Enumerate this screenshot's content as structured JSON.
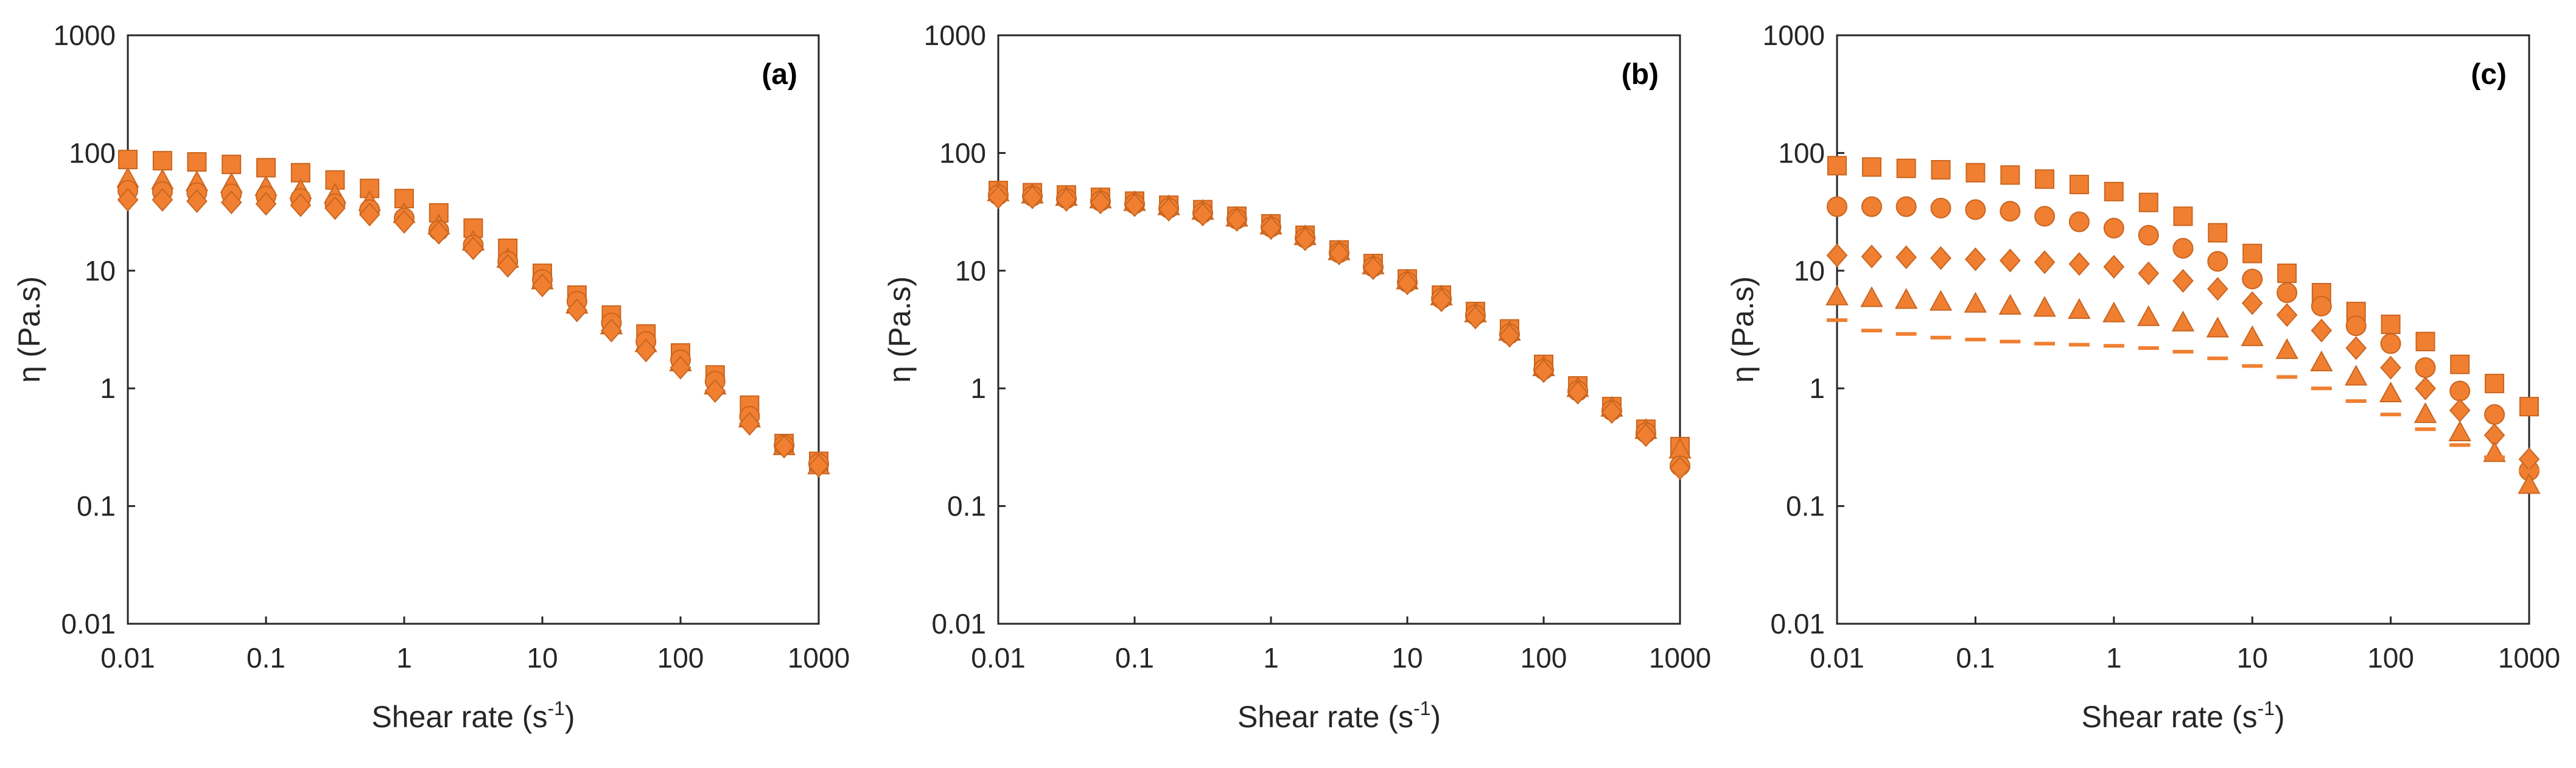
{
  "figure": {
    "colors": {
      "marker": "#F07F31",
      "marker_edge": "#C9651F",
      "axis": "#262626",
      "background": "#FFFFFF"
    }
  },
  "chart_data": [
    {
      "panel": "(a)",
      "type": "scatter",
      "x_scale": "log",
      "y_scale": "log",
      "xlim": [
        0.01,
        1000
      ],
      "ylim": [
        0.01,
        1000
      ],
      "x_ticks": [
        "0.01",
        "0.1",
        "1",
        "10",
        "100",
        "1000"
      ],
      "y_ticks": [
        "0.01",
        "0.1",
        "1",
        "10",
        "100",
        "1000"
      ],
      "xlabel": "Shear rate (s",
      "xlabel_sup": "-1",
      "xlabel_end": ")",
      "ylabel": "η (Pa.s)",
      "x": [
        0.01,
        0.0178,
        0.0316,
        0.0562,
        0.1,
        0.178,
        0.316,
        0.562,
        1,
        1.78,
        3.16,
        5.62,
        10,
        17.8,
        31.6,
        56.2,
        100,
        178,
        316,
        562,
        1000
      ],
      "series": [
        {
          "name": "square",
          "marker": "square",
          "values": [
            88,
            86,
            84,
            80,
            75,
            68,
            59,
            50,
            41,
            31,
            23,
            15.5,
            9.5,
            6.2,
            4.2,
            2.9,
            2.0,
            1.3,
            0.72,
            0.34,
            0.24
          ]
        },
        {
          "name": "triangle",
          "marker": "triangle",
          "values": [
            60,
            58,
            56,
            54,
            51,
            48,
            44,
            38,
            30,
            24,
            17.5,
            12.5,
            8.2,
            5.1,
            3.4,
            2.4,
            1.65,
            1.05,
            0.55,
            0.32,
            0.22
          ]
        },
        {
          "name": "circle",
          "marker": "circle",
          "values": [
            48,
            47,
            46,
            45,
            43,
            41,
            37,
            33,
            28,
            22,
            16.5,
            12,
            8.4,
            5.5,
            3.6,
            2.5,
            1.75,
            1.15,
            0.58,
            0.33,
            0.23
          ]
        },
        {
          "name": "diamond",
          "marker": "diamond",
          "values": [
            40,
            40,
            39,
            38,
            37,
            36,
            34,
            30,
            26,
            21,
            15.5,
            11,
            7.5,
            4.6,
            3.1,
            2.1,
            1.5,
            0.95,
            0.5,
            0.32,
            0.22
          ]
        }
      ]
    },
    {
      "panel": "(b)",
      "type": "scatter",
      "x_scale": "log",
      "y_scale": "log",
      "xlim": [
        0.01,
        1000
      ],
      "ylim": [
        0.01,
        1000
      ],
      "x_ticks": [
        "0.01",
        "0.1",
        "1",
        "10",
        "100",
        "1000"
      ],
      "y_ticks": [
        "0.01",
        "0.1",
        "1",
        "10",
        "100",
        "1000"
      ],
      "xlabel": "Shear rate (s",
      "xlabel_sup": "-1",
      "xlabel_end": ")",
      "ylabel": "η (Pa.s)",
      "x": [
        0.01,
        0.0178,
        0.0316,
        0.0562,
        0.1,
        0.178,
        0.316,
        0.562,
        1,
        1.78,
        3.16,
        5.62,
        10,
        17.8,
        31.6,
        56.2,
        100,
        178,
        316,
        562,
        1000
      ],
      "series": [
        {
          "name": "square",
          "marker": "square",
          "values": [
            48,
            46,
            44,
            42,
            39,
            36,
            33,
            29,
            25,
            20,
            15,
            11.5,
            8.5,
            6.2,
            4.5,
            3.2,
            1.6,
            1.05,
            0.7,
            0.45,
            0.32
          ]
        },
        {
          "name": "triangle",
          "marker": "triangle",
          "values": [
            46,
            44,
            42,
            40,
            38,
            35,
            32,
            28,
            24,
            19.5,
            14.5,
            11,
            8.2,
            6.0,
            4.3,
            3.0,
            1.5,
            1.0,
            0.68,
            0.44,
            0.3
          ]
        },
        {
          "name": "circle",
          "marker": "circle",
          "values": [
            44,
            43,
            41,
            39,
            37,
            34,
            31,
            27.5,
            23.5,
            19,
            14.2,
            10.8,
            8.0,
            5.8,
            4.2,
            2.9,
            1.45,
            0.95,
            0.65,
            0.42,
            0.22
          ]
        },
        {
          "name": "diamond",
          "marker": "diamond",
          "values": [
            42,
            42,
            40,
            38,
            36,
            33,
            30,
            27,
            23,
            18.5,
            14,
            10.5,
            7.8,
            5.6,
            4.0,
            2.8,
            1.4,
            0.92,
            0.63,
            0.4,
            0.21
          ]
        }
      ]
    },
    {
      "panel": "(c)",
      "type": "scatter",
      "x_scale": "log",
      "y_scale": "log",
      "xlim": [
        0.01,
        1000
      ],
      "ylim": [
        0.01,
        1000
      ],
      "x_ticks": [
        "0.01",
        "0.1",
        "1",
        "10",
        "100",
        "1000"
      ],
      "y_ticks": [
        "0.01",
        "0.1",
        "1",
        "10",
        "100",
        "1000"
      ],
      "xlabel": "Shear rate (s",
      "xlabel_sup": "-1",
      "xlabel_end": ")",
      "ylabel": "η (Pa.s)",
      "x": [
        0.01,
        0.0178,
        0.0316,
        0.0562,
        0.1,
        0.178,
        0.316,
        0.562,
        1,
        1.78,
        3.16,
        5.62,
        10,
        17.8,
        31.6,
        56.2,
        100,
        178,
        316,
        562,
        1000
      ],
      "series": [
        {
          "name": "square",
          "marker": "square",
          "values": [
            78,
            76,
            74,
            72,
            68,
            65,
            60,
            54,
            47,
            38,
            29,
            21,
            14,
            9.5,
            6.5,
            4.5,
            3.5,
            2.5,
            1.6,
            1.1,
            0.7
          ]
        },
        {
          "name": "circle",
          "marker": "circle",
          "values": [
            35,
            35,
            35,
            34,
            33,
            32,
            29,
            26,
            23,
            20,
            15.5,
            12,
            8.5,
            6.5,
            5.0,
            3.4,
            2.4,
            1.5,
            0.95,
            0.6,
            0.2
          ]
        },
        {
          "name": "diamond",
          "marker": "diamond",
          "values": [
            13.5,
            13.2,
            13,
            12.8,
            12.5,
            12.2,
            11.8,
            11.4,
            10.8,
            9.5,
            8.2,
            7.0,
            5.3,
            4.2,
            3.1,
            2.2,
            1.5,
            1.0,
            0.65,
            0.4,
            0.25
          ]
        },
        {
          "name": "triangle",
          "marker": "triangle",
          "values": [
            6.0,
            5.8,
            5.6,
            5.4,
            5.2,
            5.0,
            4.8,
            4.6,
            4.3,
            4.0,
            3.6,
            3.2,
            2.7,
            2.1,
            1.65,
            1.25,
            0.9,
            0.6,
            0.42,
            0.28,
            0.15
          ]
        },
        {
          "name": "dash",
          "marker": "dash",
          "values": [
            3.8,
            3.1,
            2.9,
            2.7,
            2.6,
            2.5,
            2.4,
            2.35,
            2.3,
            2.2,
            2.05,
            1.8,
            1.55,
            1.25,
            1.0,
            0.78,
            0.6,
            0.45,
            0.33,
            0.26,
            0.2
          ]
        }
      ]
    }
  ]
}
